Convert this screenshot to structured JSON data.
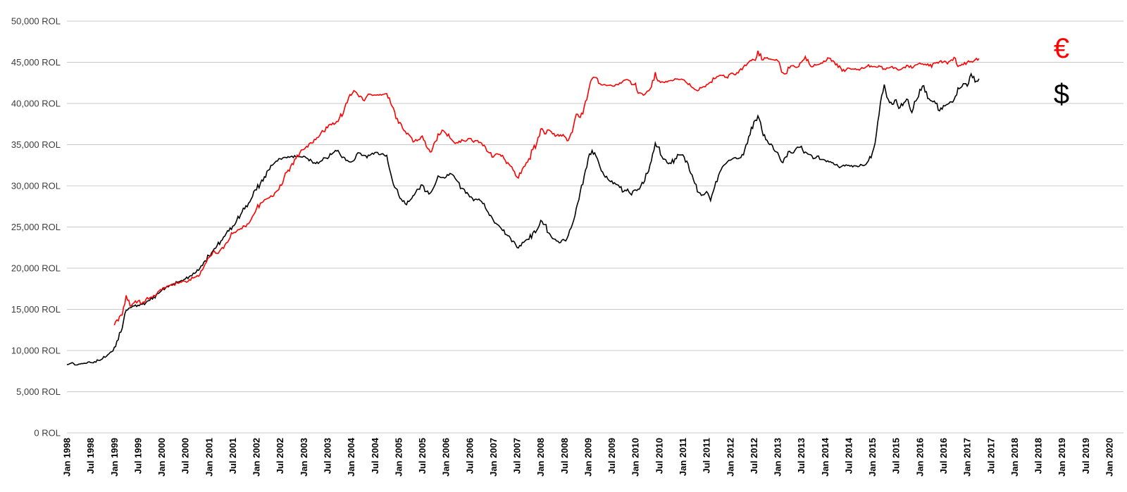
{
  "chart_data": {
    "type": "line",
    "title": "",
    "currency_unit": "ROL",
    "grid": true,
    "legend_position": "right",
    "y_axis": {
      "min": 0,
      "max": 50000,
      "step": 5000,
      "labels": [
        "0 ROL",
        "5,000 ROL",
        "10,000 ROL",
        "15,000 ROL",
        "20,000 ROL",
        "25,000 ROL",
        "30,000 ROL",
        "35,000 ROL",
        "40,000 ROL",
        "45,000 ROL",
        "50,000 ROL"
      ]
    },
    "x_axis": {
      "start_year": 1998,
      "end_year": 2020,
      "tick_interval_months": 6,
      "tick_labels": [
        "Jan 1998",
        "Jul 1998",
        "Jan 1999",
        "Jul 1999",
        "Jan 2000",
        "Jul 2000",
        "Jan 2001",
        "Jul 2001",
        "Jan 2002",
        "Jul 2002",
        "Jan 2003",
        "Jul 2003",
        "Jan 2004",
        "Jul 2004",
        "Jan 2005",
        "Jul 2005",
        "Jan 2006",
        "Jul 2006",
        "Jan 2007",
        "Jul 2007",
        "Jan 2008",
        "Jul 2008",
        "Jan 2009",
        "Jul 2009",
        "Jan 2010",
        "Jul 2010",
        "Jan 2011",
        "Jul 2011",
        "Jan 2012",
        "Jul 2012",
        "Jan 2013",
        "Jul 2013",
        "Jan 2014",
        "Jul 2014",
        "Jan 2015",
        "Jul 2015",
        "Jan 2016",
        "Jul 2016",
        "Jan 2017",
        "Jul 2017",
        "Jan 2018",
        "Jul 2018",
        "Jan 2019",
        "Jul 2019",
        "Jan 2020"
      ]
    },
    "legend": [
      {
        "symbol": "€",
        "name": "EUR",
        "color": "#ff0000"
      },
      {
        "symbol": "$",
        "name": "USD",
        "color": "#000000"
      }
    ],
    "series": [
      {
        "name": "USD",
        "symbol": "$",
        "color": "#000000",
        "start_year": 1998,
        "start_month": 1,
        "interval_months": 1,
        "values": [
          8300,
          8450,
          8250,
          8350,
          8400,
          8450,
          8550,
          8650,
          8800,
          9000,
          9300,
          9800,
          10400,
          11300,
          12700,
          14900,
          15200,
          15400,
          15500,
          15600,
          15800,
          16100,
          16500,
          16900,
          17300,
          17600,
          17900,
          18100,
          18300,
          18500,
          18700,
          19000,
          19400,
          19800,
          20300,
          20900,
          21500,
          22100,
          22700,
          23300,
          23900,
          24500,
          25100,
          25800,
          26500,
          27200,
          27900,
          28700,
          29500,
          30300,
          31100,
          31900,
          32500,
          33000,
          33300,
          33450,
          33550,
          33600,
          33500,
          33550,
          33600,
          33300,
          33000,
          32700,
          32900,
          33400,
          33300,
          33800,
          34300,
          34000,
          33500,
          33100,
          32900,
          33300,
          34000,
          33700,
          33400,
          33800,
          34050,
          33800,
          33900,
          33700,
          31500,
          29800,
          28900,
          28100,
          27700,
          28300,
          28900,
          29600,
          30100,
          29300,
          29100,
          29900,
          31200,
          31000,
          31050,
          31500,
          31200,
          30500,
          29700,
          29100,
          28650,
          28200,
          28300,
          28100,
          27300,
          26400,
          25800,
          25300,
          24800,
          24100,
          23900,
          23300,
          22500,
          22700,
          23300,
          23500,
          24300,
          24600,
          25800,
          25300,
          24300,
          23600,
          23300,
          23100,
          23400,
          24000,
          25300,
          27300,
          29300,
          31200,
          33300,
          34300,
          33600,
          32300,
          31300,
          30800,
          30600,
          30200,
          29800,
          29300,
          29600,
          28900,
          29500,
          29600,
          30300,
          31500,
          33000,
          35200,
          34700,
          33250,
          32800,
          32700,
          33300,
          33750,
          33760,
          33000,
          31500,
          30300,
          29200,
          28900,
          29300,
          28200,
          29800,
          31250,
          32300,
          32750,
          33100,
          33400,
          33300,
          33800,
          35000,
          36200,
          37800,
          38500,
          36800,
          35600,
          35000,
          34400,
          34050,
          32900,
          33500,
          34200,
          34000,
          34700,
          34800,
          34100,
          33800,
          33300,
          33600,
          33200,
          33100,
          32900,
          32800,
          32600,
          32300,
          32400,
          32500,
          32300,
          32400,
          32600,
          32500,
          33050,
          34050,
          36300,
          40000,
          42300,
          40500,
          39900,
          40450,
          39500,
          40100,
          40450,
          38900,
          40300,
          41700,
          42150,
          40600,
          40300,
          40000,
          39100,
          39750,
          39900,
          40200,
          40870,
          41800,
          42400,
          42100,
          43600,
          42600,
          43000
        ]
      },
      {
        "name": "EUR",
        "symbol": "€",
        "color": "#ff0000",
        "start_year": 1999,
        "start_month": 1,
        "interval_months": 1,
        "values": [
          13080,
          13600,
          14300,
          16700,
          15400,
          15800,
          16000,
          15700,
          16200,
          16400,
          16700,
          17100,
          17400,
          17600,
          17900,
          18000,
          18200,
          18300,
          18400,
          18600,
          18800,
          19100,
          19700,
          20500,
          21300,
          22000,
          21800,
          22300,
          22800,
          23400,
          24200,
          24500,
          24800,
          25100,
          25400,
          26300,
          27200,
          27900,
          28300,
          28500,
          28700,
          29300,
          30100,
          31000,
          31900,
          32700,
          33300,
          34000,
          34400,
          34700,
          35200,
          35600,
          36100,
          36600,
          37050,
          37400,
          37600,
          38200,
          38800,
          40100,
          41000,
          41450,
          40800,
          40400,
          40900,
          41100,
          41030,
          41000,
          41100,
          41200,
          40000,
          39000,
          37600,
          37000,
          36300,
          36000,
          35400,
          35600,
          36050,
          34800,
          34100,
          35200,
          36300,
          36750,
          36350,
          35800,
          35300,
          35200,
          35600,
          35400,
          35750,
          35300,
          35500,
          35200,
          34700,
          34000,
          33500,
          33900,
          33600,
          33100,
          32600,
          31900,
          31050,
          31500,
          32400,
          33300,
          34400,
          35200,
          36900,
          36300,
          36800,
          36300,
          36100,
          36200,
          36000,
          35500,
          36500,
          38700,
          38300,
          39600,
          41300,
          43000,
          43150,
          42400,
          42300,
          42200,
          42150,
          42300,
          42500,
          42800,
          42900,
          42300,
          42450,
          41300,
          41000,
          41500,
          42000,
          43800,
          42750,
          42600,
          42600,
          42800,
          43000,
          42900,
          42900,
          42500,
          42100,
          41700,
          41600,
          42000,
          42300,
          42600,
          43000,
          43300,
          43400,
          43200,
          43600,
          43500,
          43700,
          44100,
          44600,
          45200,
          45300,
          46400,
          45300,
          45500,
          45400,
          45300,
          45200,
          43800,
          43600,
          44300,
          44600,
          44400,
          45000,
          45700,
          44800,
          44500,
          44700,
          44900,
          45100,
          45500,
          45200,
          44800,
          44300,
          43900,
          44300,
          44200,
          44100,
          44200,
          44300,
          44700,
          44450,
          44400,
          44500,
          44200,
          44300,
          44500,
          44300,
          44100,
          44400,
          44600,
          44300,
          44700,
          44900,
          44700,
          44800,
          44400,
          44900,
          45100,
          45040,
          44800,
          45300,
          45500,
          44600,
          44700,
          45000,
          45100,
          45300,
          45450
        ]
      }
    ]
  }
}
